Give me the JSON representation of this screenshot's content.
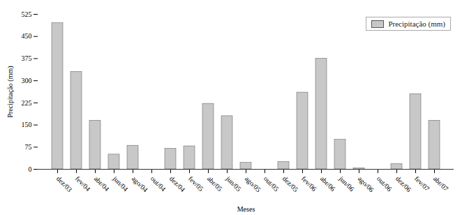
{
  "chart_data": {
    "type": "bar",
    "categories": [
      "dez/03",
      "fev/04",
      "abr/04",
      "jun/04",
      "ago/04",
      "out/04",
      "dez/04",
      "fev/05",
      "abr/05",
      "jun/05",
      "ago/05",
      "out/05",
      "dez/05",
      "fev/06",
      "abr/06",
      "jun/06",
      "ago/06",
      "out/06",
      "dez/06",
      "fev/07",
      "abr/07"
    ],
    "series": [
      {
        "name": "Precipitação (mm)",
        "color": "#c8c8c8",
        "values": [
          495,
          330,
          165,
          50,
          80,
          0,
          70,
          78,
          222,
          180,
          22,
          0,
          25,
          260,
          375,
          100,
          3,
          0,
          18,
          255,
          165
        ]
      }
    ],
    "xlabel": "Meses",
    "ylabel": "Precipitação (mm)",
    "ylim": [
      0,
      525
    ],
    "yticks": [
      0,
      75,
      150,
      225,
      300,
      375,
      450,
      525
    ],
    "grid": false,
    "legend": "upper right"
  }
}
